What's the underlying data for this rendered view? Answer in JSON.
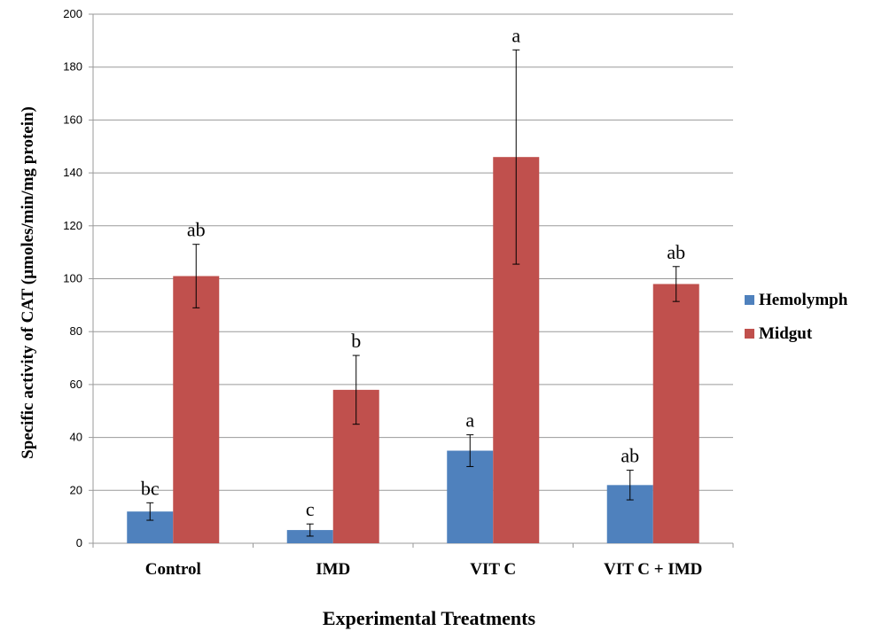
{
  "chart_data": {
    "type": "bar",
    "title": "",
    "xlabel": "Experimental Treatments",
    "ylabel": "Specific activity of CAT (µmoles/min/mg protein)",
    "ylim": [
      0,
      200
    ],
    "yticks": [
      0,
      20,
      40,
      60,
      80,
      100,
      120,
      140,
      160,
      180,
      200
    ],
    "grid": true,
    "legend_position": "right",
    "categories": [
      "Control",
      "IMD",
      "VIT C",
      "VIT C + IMD"
    ],
    "series": [
      {
        "name": "Hemolymph",
        "color": "#4f81bd",
        "values": [
          12,
          5,
          35,
          22
        ],
        "errors": [
          3.3,
          2.3,
          6,
          5.6
        ],
        "letters": [
          "bc",
          "c",
          "a",
          "ab"
        ]
      },
      {
        "name": "Midgut",
        "color": "#c0504d",
        "values": [
          101,
          58,
          146,
          98
        ],
        "errors": [
          12,
          13,
          40.5,
          6.6
        ],
        "letters": [
          "ab",
          "b",
          "a",
          "ab"
        ]
      }
    ]
  }
}
